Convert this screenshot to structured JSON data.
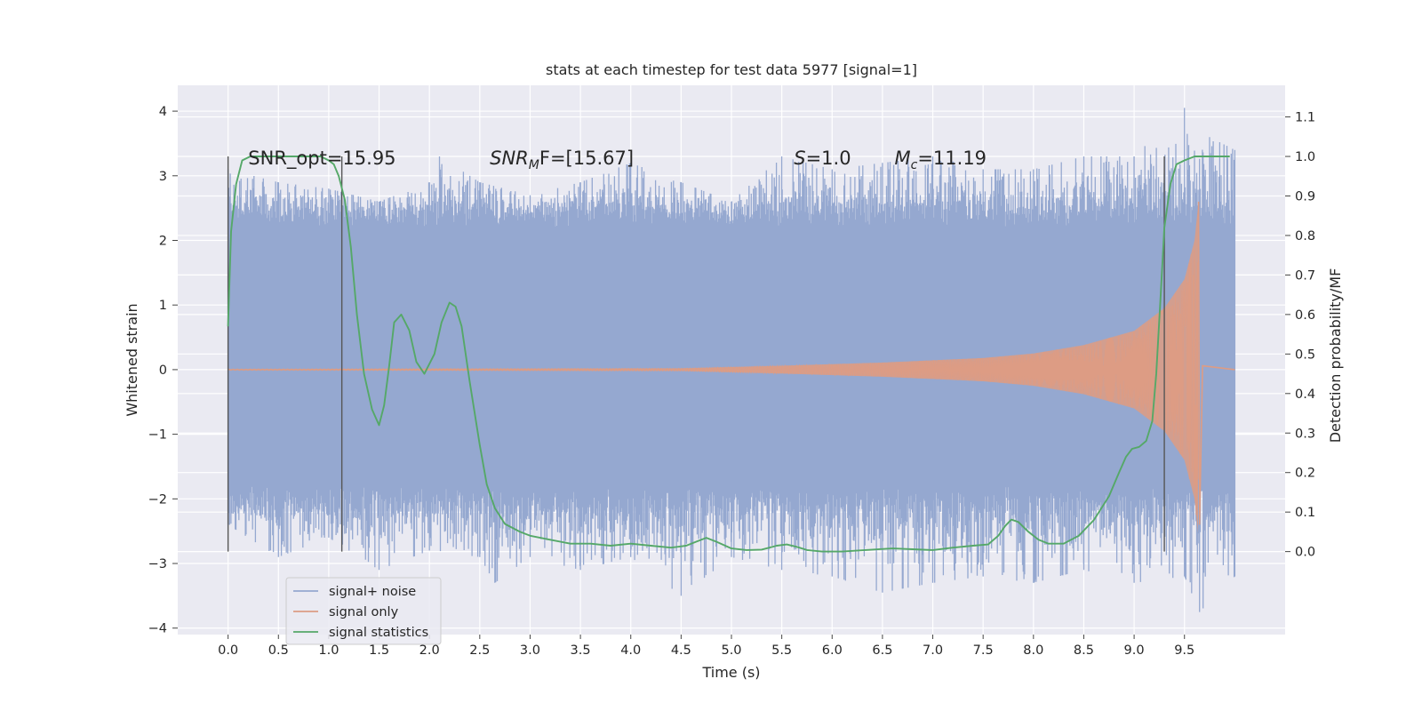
{
  "chart_data": {
    "type": "line",
    "title": "stats at each timestep for test data 5977 [signal=1]",
    "xlabel": "Time (s)",
    "ylabel": "Whitened strain",
    "y2label": "Detection probability/MF",
    "xlim": [
      -0.5,
      10.5
    ],
    "ylim": [
      -4.1,
      4.4
    ],
    "y2lim": [
      -0.21,
      1.18
    ],
    "x_ticks": [
      "0.0",
      "0.5",
      "1.0",
      "1.5",
      "2.0",
      "2.5",
      "3.0",
      "3.5",
      "4.0",
      "4.5",
      "5.0",
      "5.5",
      "6.0",
      "6.5",
      "7.0",
      "7.5",
      "8.0",
      "8.5",
      "9.0",
      "9.5"
    ],
    "y_ticks": [
      "4",
      "3",
      "2",
      "1",
      "0",
      "−1",
      "−2",
      "−3",
      "−4"
    ],
    "y2_ticks": [
      "1.1",
      "1.0",
      "0.9",
      "0.8",
      "0.7",
      "0.6",
      "0.5",
      "0.4",
      "0.3",
      "0.2",
      "0.1",
      "0.0"
    ],
    "grid": true,
    "legend_position": "lower-left",
    "annotations": {
      "snr_opt": "SNR_opt=15.95",
      "snr_mf_name": "SNR",
      "snr_mf_sub": "M",
      "snr_mf_rest": "F=[15.67]",
      "s_name": "S",
      "s_rest": "=1.0",
      "mc_name": "M",
      "mc_sub": "c",
      "mc_rest": "=11.19"
    },
    "vlines_x": [
      0.0,
      1.13,
      9.3
    ],
    "series": [
      {
        "name": "signal+ noise",
        "color": "#95a8d0",
        "axis": "left",
        "t_start": 0.0,
        "t_end": 10.0,
        "typical_band": [
          -1.8,
          2.2
        ],
        "envelope_upper": [
          [
            0.0,
            3.1
          ],
          [
            0.5,
            2.9
          ],
          [
            1.0,
            2.8
          ],
          [
            1.5,
            2.6
          ],
          [
            2.0,
            2.9
          ],
          [
            2.1,
            3.3
          ],
          [
            2.5,
            2.9
          ],
          [
            3.0,
            2.7
          ],
          [
            3.5,
            2.9
          ],
          [
            4.0,
            3.2
          ],
          [
            4.5,
            2.9
          ],
          [
            5.0,
            2.6
          ],
          [
            5.5,
            3.3
          ],
          [
            6.0,
            3.1
          ],
          [
            6.5,
            3.2
          ],
          [
            7.0,
            3.3
          ],
          [
            7.5,
            3.1
          ],
          [
            8.0,
            3.1
          ],
          [
            8.5,
            3.3
          ],
          [
            9.0,
            3.3
          ],
          [
            9.5,
            4.05
          ],
          [
            9.75,
            3.6
          ],
          [
            10.0,
            3.4
          ]
        ],
        "envelope_lower": [
          [
            0.0,
            -2.4
          ],
          [
            0.5,
            -2.9
          ],
          [
            1.0,
            -2.6
          ],
          [
            1.5,
            -3.1
          ],
          [
            2.0,
            -2.8
          ],
          [
            2.5,
            -2.9
          ],
          [
            2.65,
            -3.3
          ],
          [
            3.0,
            -2.9
          ],
          [
            3.5,
            -3.1
          ],
          [
            4.0,
            -2.9
          ],
          [
            4.5,
            -3.5
          ],
          [
            5.0,
            -2.9
          ],
          [
            5.5,
            -3.1
          ],
          [
            6.0,
            -3.2
          ],
          [
            6.5,
            -3.45
          ],
          [
            7.0,
            -3.3
          ],
          [
            7.5,
            -3.2
          ],
          [
            8.0,
            -3.3
          ],
          [
            8.5,
            -3.1
          ],
          [
            9.0,
            -3.3
          ],
          [
            9.5,
            -3.2
          ],
          [
            9.65,
            -3.75
          ],
          [
            10.0,
            -3.2
          ]
        ]
      },
      {
        "name": "signal only",
        "color": "#dd9c84",
        "axis": "left",
        "chirp_amplitude": [
          [
            0.0,
            0.01
          ],
          [
            4.5,
            0.02
          ],
          [
            5.5,
            0.06
          ],
          [
            6.5,
            0.11
          ],
          [
            7.5,
            0.18
          ],
          [
            8.0,
            0.25
          ],
          [
            8.5,
            0.38
          ],
          [
            9.0,
            0.6
          ],
          [
            9.3,
            0.95
          ],
          [
            9.5,
            1.4
          ],
          [
            9.6,
            2.0
          ],
          [
            9.64,
            2.6
          ],
          [
            9.66,
            -2.4
          ],
          [
            9.7,
            0.05
          ],
          [
            10.0,
            0.0
          ]
        ]
      },
      {
        "name": "signal statistics",
        "color": "#55a868",
        "axis": "right",
        "x": [
          0.0,
          0.03,
          0.08,
          0.14,
          0.22,
          0.35,
          0.55,
          0.75,
          0.92,
          1.0,
          1.05,
          1.1,
          1.16,
          1.22,
          1.28,
          1.35,
          1.43,
          1.5,
          1.55,
          1.6,
          1.65,
          1.72,
          1.8,
          1.87,
          1.95,
          2.05,
          2.12,
          2.2,
          2.26,
          2.32,
          2.4,
          2.5,
          2.57,
          2.65,
          2.75,
          2.9,
          3.0,
          3.2,
          3.4,
          3.6,
          3.8,
          4.0,
          4.2,
          4.4,
          4.55,
          4.65,
          4.75,
          4.85,
          5.0,
          5.15,
          5.3,
          5.45,
          5.55,
          5.65,
          5.75,
          5.9,
          6.1,
          6.4,
          6.6,
          6.8,
          7.0,
          7.2,
          7.4,
          7.55,
          7.65,
          7.72,
          7.78,
          7.85,
          7.95,
          8.05,
          8.15,
          8.3,
          8.45,
          8.6,
          8.75,
          8.85,
          8.92,
          8.98,
          9.05,
          9.12,
          9.18,
          9.22,
          9.26,
          9.3,
          9.36,
          9.42,
          9.5,
          9.6,
          9.75,
          9.9,
          9.95
        ],
        "y": [
          0.57,
          0.81,
          0.93,
          0.99,
          1.0,
          1.0,
          1.0,
          1.0,
          1.0,
          0.99,
          0.98,
          0.95,
          0.89,
          0.77,
          0.6,
          0.45,
          0.36,
          0.32,
          0.37,
          0.47,
          0.58,
          0.6,
          0.56,
          0.48,
          0.45,
          0.5,
          0.58,
          0.63,
          0.62,
          0.57,
          0.43,
          0.27,
          0.17,
          0.11,
          0.07,
          0.05,
          0.04,
          0.03,
          0.02,
          0.02,
          0.015,
          0.02,
          0.015,
          0.01,
          0.015,
          0.025,
          0.035,
          0.025,
          0.008,
          0.004,
          0.005,
          0.015,
          0.018,
          0.012,
          0.004,
          0.0,
          0.0,
          0.005,
          0.008,
          0.006,
          0.004,
          0.01,
          0.015,
          0.018,
          0.04,
          0.065,
          0.081,
          0.075,
          0.05,
          0.03,
          0.02,
          0.02,
          0.04,
          0.08,
          0.14,
          0.2,
          0.24,
          0.26,
          0.265,
          0.28,
          0.33,
          0.45,
          0.63,
          0.82,
          0.93,
          0.98,
          0.99,
          1.0,
          1.0,
          1.0,
          1.0
        ]
      }
    ]
  }
}
